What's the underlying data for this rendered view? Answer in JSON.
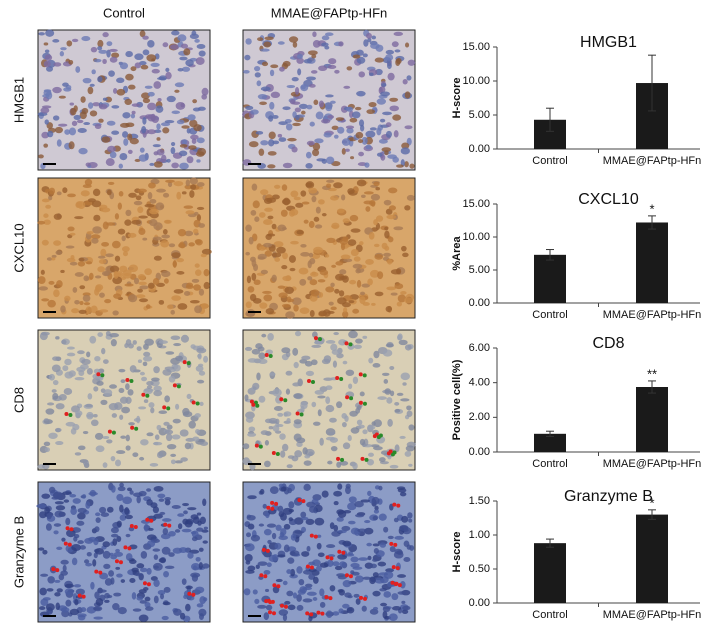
{
  "panels": {
    "columns": [
      "Control",
      "MMAE@FAPtp-HFn"
    ],
    "rows": [
      "HMGB1",
      "CXCL10",
      "CD8",
      "Granzyme B"
    ]
  },
  "chart_data": [
    {
      "type": "bar",
      "title": "HMGB1",
      "ylabel": "H-score",
      "categories": [
        "Control",
        "MMAE@FAPtp-HFn"
      ],
      "values": [
        4.3,
        9.7
      ],
      "errors": [
        1.7,
        4.1
      ],
      "significance": [
        null,
        null
      ],
      "color": "#1a1a1a",
      "ylim": [
        0,
        15
      ],
      "yticks": [
        {
          "value": 0,
          "label": "0.00"
        },
        {
          "value": 5,
          "label": "5.00"
        },
        {
          "value": 10,
          "label": "10.00"
        },
        {
          "value": 15,
          "label": "15.00"
        }
      ]
    },
    {
      "type": "bar",
      "title": "CXCL10",
      "ylabel": "%Area",
      "categories": [
        "Control",
        "MMAE@FAPtp-HFn"
      ],
      "values": [
        7.3,
        12.2
      ],
      "errors": [
        0.8,
        1.0
      ],
      "significance": [
        null,
        "*"
      ],
      "color": "#1a1a1a",
      "ylim": [
        0,
        15
      ],
      "yticks": [
        {
          "value": 0,
          "label": "0.00"
        },
        {
          "value": 5,
          "label": "5.00"
        },
        {
          "value": 10,
          "label": "10.00"
        },
        {
          "value": 15,
          "label": "15.00"
        }
      ]
    },
    {
      "type": "bar",
      "title": "CD8",
      "ylabel": "Positive cell(%)",
      "categories": [
        "Control",
        "MMAE@FAPtp-HFn"
      ],
      "values": [
        1.05,
        3.75
      ],
      "errors": [
        0.15,
        0.35
      ],
      "significance": [
        null,
        "**"
      ],
      "color": "#1a1a1a",
      "ylim": [
        0,
        6
      ],
      "yticks": [
        {
          "value": 0,
          "label": "0.00"
        },
        {
          "value": 2,
          "label": "2.00"
        },
        {
          "value": 4,
          "label": "4.00"
        },
        {
          "value": 6,
          "label": "6.00"
        }
      ]
    },
    {
      "type": "bar",
      "title": "Granzyme B",
      "ylabel": "H-score",
      "categories": [
        "Control",
        "MMAE@FAPtp-HFn"
      ],
      "values": [
        0.88,
        1.3
      ],
      "errors": [
        0.06,
        0.07
      ],
      "significance": [
        null,
        "*"
      ],
      "color": "#1a1a1a",
      "ylim": [
        0,
        1.5
      ],
      "yticks": [
        {
          "value": 0,
          "label": "0.00"
        },
        {
          "value": 0.5,
          "label": "0.50"
        },
        {
          "value": 1,
          "label": "1.00"
        },
        {
          "value": 1.5,
          "label": "1.50"
        }
      ]
    }
  ]
}
